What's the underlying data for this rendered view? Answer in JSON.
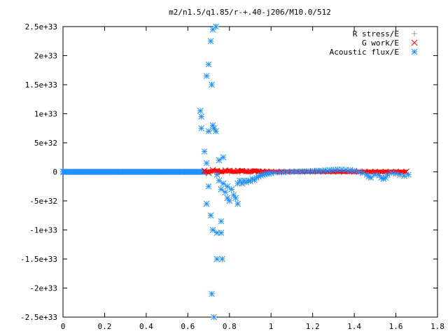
{
  "chart_data": {
    "type": "scatter",
    "title": "m2/n1.5/q1.85/r-+.40-j206/M10.0/512",
    "xlabel": "",
    "ylabel": "",
    "xlim": [
      0,
      1.8
    ],
    "ylim": [
      -2.5e+33,
      2.5e+33
    ],
    "x_ticks": [
      {
        "value": 0,
        "label": "0"
      },
      {
        "value": 0.2,
        "label": "0.2"
      },
      {
        "value": 0.4,
        "label": "0.4"
      },
      {
        "value": 0.6,
        "label": "0.6"
      },
      {
        "value": 0.8,
        "label": "0.8"
      },
      {
        "value": 1.0,
        "label": "1"
      },
      {
        "value": 1.2,
        "label": "1.2"
      },
      {
        "value": 1.4,
        "label": "1.4"
      },
      {
        "value": 1.6,
        "label": "1.6"
      },
      {
        "value": 1.8,
        "label": "1.8"
      }
    ],
    "y_ticks": [
      {
        "value": 2.5e+33,
        "label": "2.5e+33"
      },
      {
        "value": 2e+33,
        "label": "2e+33"
      },
      {
        "value": 1.5e+33,
        "label": "1.5e+33"
      },
      {
        "value": 1e+33,
        "label": "1e+33"
      },
      {
        "value": 5e+32,
        "label": "5e+32"
      },
      {
        "value": 0,
        "label": "0"
      },
      {
        "value": -5e+32,
        "label": "-5e+32"
      },
      {
        "value": -1e+33,
        "label": "-1e+33"
      },
      {
        "value": -1.5e+33,
        "label": "-1.5e+33"
      },
      {
        "value": -2e+33,
        "label": "-2e+33"
      },
      {
        "value": -2.5e+33,
        "label": "-2.5e+33"
      }
    ],
    "grid": false,
    "legend_position": "top-right",
    "series": [
      {
        "name": "R stress/E",
        "marker": "plus",
        "color": "#a0a0a0",
        "points": [
          [
            0.7,
            5e+30
          ],
          [
            0.75,
            -1e+31
          ],
          [
            0.8,
            -2e+31
          ],
          [
            0.85,
            -1.5e+31
          ],
          [
            0.9,
            -1e+31
          ],
          [
            1.0,
            0.0
          ],
          [
            1.2,
            0.0
          ],
          [
            1.4,
            0.0
          ],
          [
            1.6,
            0.0
          ]
        ]
      },
      {
        "name": "G work/E",
        "marker": "cross",
        "color": "#ff0000",
        "points": [
          [
            0.68,
            2e+31
          ],
          [
            0.7,
            -2e+31
          ],
          [
            0.72,
            3e+31
          ],
          [
            0.74,
            2e+31
          ],
          [
            0.76,
            1e+31
          ],
          [
            0.78,
            2.5e+31
          ],
          [
            0.8,
            2e+31
          ],
          [
            0.82,
            1.5e+31
          ],
          [
            0.84,
            2e+31
          ],
          [
            0.86,
            1.5e+31
          ],
          [
            0.88,
            1e+31
          ],
          [
            0.9,
            1.2e+31
          ],
          [
            0.92,
            8e+30
          ],
          [
            0.94,
            5e+30
          ],
          [
            0.96,
            8e+30
          ],
          [
            0.98,
            5e+30
          ],
          [
            1.0,
            4e+30
          ],
          [
            1.05,
            3e+30
          ],
          [
            1.1,
            3e+30
          ],
          [
            1.15,
            2e+30
          ],
          [
            1.2,
            3e+30
          ],
          [
            1.25,
            2e+30
          ],
          [
            1.3,
            3e+30
          ],
          [
            1.35,
            3e+30
          ],
          [
            1.4,
            4e+30
          ],
          [
            1.45,
            3e+30
          ],
          [
            1.5,
            4e+30
          ],
          [
            1.55,
            3e+30
          ],
          [
            1.6,
            4e+30
          ],
          [
            1.65,
            3e+30
          ]
        ]
      },
      {
        "name": "Acoustic flux/E",
        "marker": "star",
        "color": "#2090ff",
        "points": [
          [
            0.66,
            1.05e+33
          ],
          [
            0.665,
            9.5e+32
          ],
          [
            0.665,
            7.5e+32
          ],
          [
            0.68,
            3.5e+32
          ],
          [
            0.69,
            1.5e+32
          ],
          [
            0.7,
            7e+32
          ],
          [
            0.71,
            2.25e+33
          ],
          [
            0.715,
            1.5e+33
          ],
          [
            0.69,
            1.65e+33
          ],
          [
            0.7,
            1.85e+33
          ],
          [
            0.72,
            2.45e+33
          ],
          [
            0.735,
            2.5e+33
          ],
          [
            0.72,
            8e+32
          ],
          [
            0.725,
            7.5e+32
          ],
          [
            0.735,
            7e+32
          ],
          [
            0.75,
            2e+32
          ],
          [
            0.77,
            2.5e+32
          ],
          [
            0.69,
            -5.5e+32
          ],
          [
            0.7,
            -2.5e+32
          ],
          [
            0.71,
            -7.5e+32
          ],
          [
            0.72,
            -1e+33
          ],
          [
            0.74,
            -1.05e+33
          ],
          [
            0.76,
            -1.05e+33
          ],
          [
            0.76,
            -8.5e+32
          ],
          [
            0.74,
            -1.5e+33
          ],
          [
            0.765,
            -1.5e+33
          ],
          [
            0.715,
            -2.1e+33
          ],
          [
            0.725,
            -2.5e+33
          ],
          [
            0.74,
            -5e+31
          ],
          [
            0.75,
            -1.5e+32
          ],
          [
            0.76,
            -3e+32
          ],
          [
            0.77,
            -2e+32
          ],
          [
            0.78,
            -3.5e+32
          ],
          [
            0.79,
            -4.5e+32
          ],
          [
            0.8,
            -5e+32
          ],
          [
            0.79,
            -2.5e+32
          ],
          [
            0.81,
            -3e+32
          ],
          [
            0.82,
            -4e+32
          ],
          [
            0.83,
            -4.5e+32
          ],
          [
            0.84,
            -5.5e+32
          ],
          [
            0.84,
            -2e+32
          ],
          [
            0.85,
            -1.5e+32
          ],
          [
            0.86,
            -2e+32
          ],
          [
            0.87,
            -1.5e+32
          ],
          [
            0.88,
            -1.8e+32
          ],
          [
            0.89,
            -1.5e+32
          ],
          [
            0.9,
            -1.6e+32
          ],
          [
            0.91,
            -1.2e+32
          ],
          [
            0.92,
            -1.4e+32
          ],
          [
            0.93,
            -1e+32
          ],
          [
            0.94,
            -8e+31
          ],
          [
            0.95,
            -6e+31
          ],
          [
            0.96,
            -5e+31
          ],
          [
            0.97,
            -4e+31
          ],
          [
            0.98,
            -3e+31
          ],
          [
            0.99,
            -3e+31
          ],
          [
            1.0,
            -2e+31
          ],
          [
            1.02,
            -1e+31
          ],
          [
            1.04,
            -1e+31
          ],
          [
            1.06,
            -5e+30
          ],
          [
            1.08,
            0.0
          ],
          [
            1.1,
            0.0
          ],
          [
            1.12,
            5e+30
          ],
          [
            1.14,
            5e+30
          ],
          [
            1.16,
            1e+31
          ],
          [
            1.18,
            1e+31
          ],
          [
            1.2,
            1.5e+31
          ],
          [
            1.22,
            2e+31
          ],
          [
            1.24,
            2e+31
          ],
          [
            1.26,
            2.5e+31
          ],
          [
            1.28,
            3e+31
          ],
          [
            1.3,
            3.5e+31
          ],
          [
            1.32,
            4e+31
          ],
          [
            1.34,
            4e+31
          ],
          [
            1.36,
            3.5e+31
          ],
          [
            1.38,
            3e+31
          ],
          [
            1.4,
            2e+31
          ],
          [
            1.42,
            0.0
          ],
          [
            1.44,
            -2e+31
          ],
          [
            1.46,
            -5e+31
          ],
          [
            1.47,
            -8e+31
          ],
          [
            1.48,
            -1e+32
          ],
          [
            1.5,
            -5e+31
          ],
          [
            1.52,
            -6e+31
          ],
          [
            1.53,
            -1e+32
          ],
          [
            1.54,
            -1.2e+32
          ],
          [
            1.55,
            -1e+32
          ],
          [
            1.56,
            -5e+31
          ],
          [
            1.58,
            -2e+31
          ],
          [
            1.6,
            -3e+31
          ],
          [
            1.62,
            -5e+31
          ],
          [
            1.64,
            -7e+31
          ],
          [
            1.66,
            -5e+31
          ]
        ]
      }
    ]
  }
}
